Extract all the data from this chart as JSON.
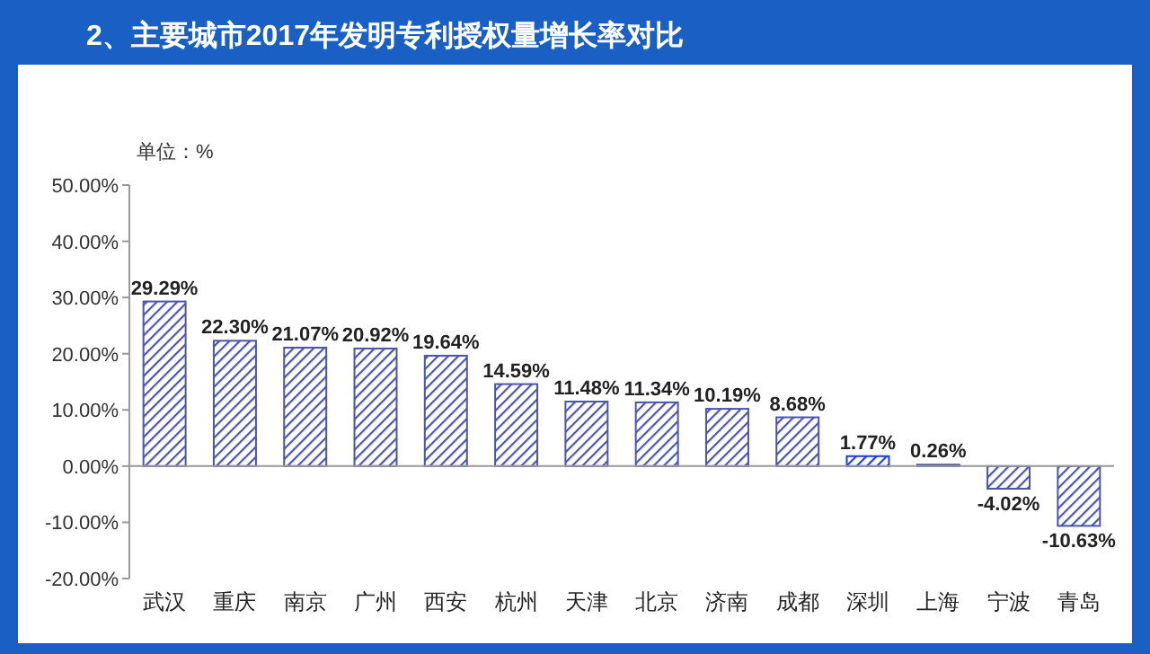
{
  "chart_data": {
    "type": "bar",
    "title": "2、主要城市2017年发明专利授权量增长率对比",
    "categories": [
      "武汉",
      "重庆",
      "南京",
      "广州",
      "西安",
      "杭州",
      "天津",
      "北京",
      "济南",
      "成都",
      "深圳",
      "上海",
      "宁波",
      "青岛"
    ],
    "values": [
      29.29,
      22.3,
      21.07,
      20.92,
      19.64,
      14.59,
      11.48,
      11.34,
      10.19,
      8.68,
      1.77,
      0.26,
      -4.02,
      -10.63
    ],
    "value_labels": [
      "29.29%",
      "22.30%",
      "21.07%",
      "20.92%",
      "19.64%",
      "14.59%",
      "11.48%",
      "11.34%",
      "10.19%",
      "8.68%",
      "1.77%",
      "0.26%",
      "-4.02%",
      "-10.63%"
    ],
    "colors": [
      "#4b56a6",
      "#4b56a6",
      "#4b56a6",
      "#4b56a6",
      "#4b56a6",
      "#4b56a6",
      "#4b56a6",
      "#4b56a6",
      "#4b56a6",
      "#4b56a6",
      "#1f3fd0",
      "#4b56a6",
      "#4b56a6",
      "#4b56a6"
    ],
    "ylim": [
      -20,
      50
    ],
    "yticks": [
      {
        "value": -20,
        "label": "-20.00%"
      },
      {
        "value": -10,
        "label": "-10.00%"
      },
      {
        "value": 0,
        "label": "0.00%"
      },
      {
        "value": 10,
        "label": "10.00%"
      },
      {
        "value": 20,
        "label": "20.00%"
      },
      {
        "value": 30,
        "label": "30.00%"
      },
      {
        "value": 40,
        "label": "40.00%"
      },
      {
        "value": 50,
        "label": "50.00%"
      }
    ],
    "annotations": [
      "单位：%"
    ],
    "ref_lines": [
      {
        "axis": "y",
        "value": 0,
        "color": "#999999"
      }
    ]
  }
}
